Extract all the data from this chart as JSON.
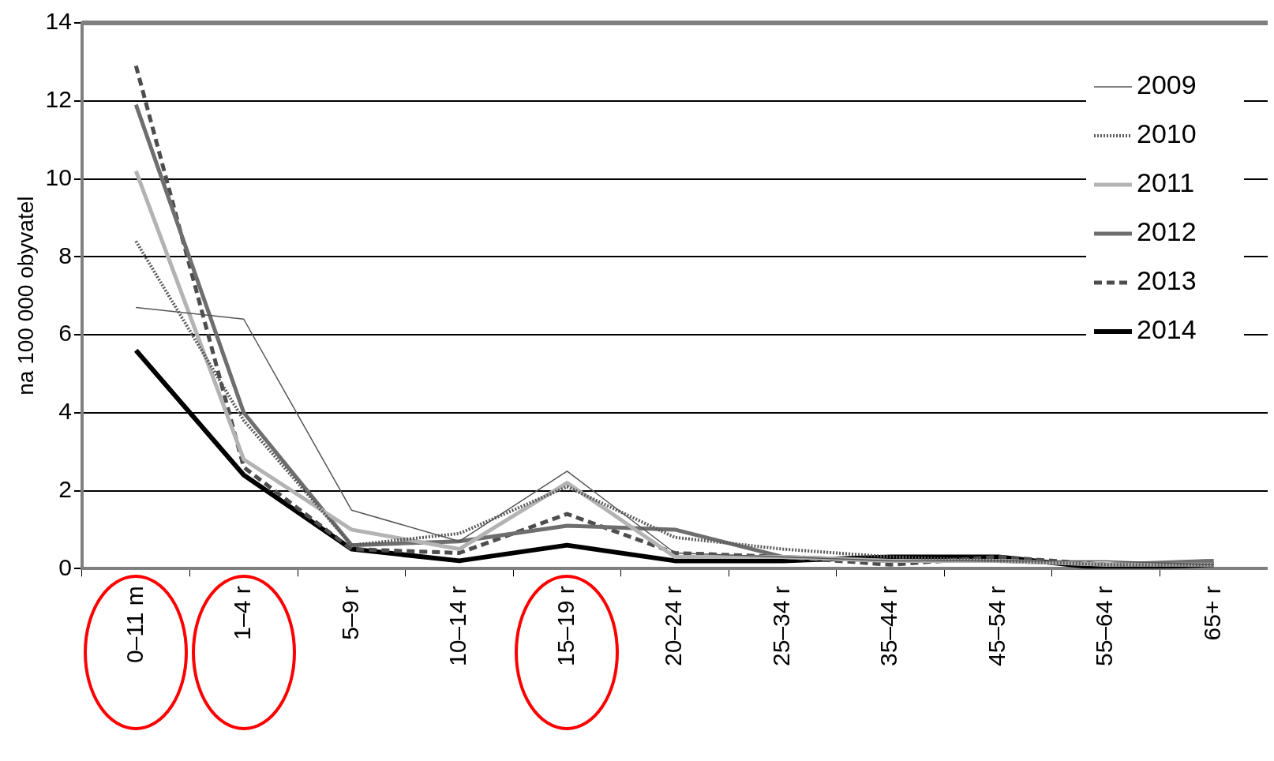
{
  "chart_data": {
    "type": "line",
    "ylabel": "na 100 000 obyvatel",
    "categories": [
      "0–11 m",
      "1–4 r",
      "5–9 r",
      "10–14 r",
      "15–19 r",
      "20–24 r",
      "25–34 r",
      "35–44 r",
      "45–54 r",
      "55–64 r",
      "65+ r"
    ],
    "series": [
      {
        "name": "2009",
        "color": "#555555",
        "line_style": "solid",
        "values": [
          6.7,
          6.4,
          1.5,
          0.7,
          2.5,
          0.4,
          0.3,
          0.2,
          0.2,
          0.2,
          0.1
        ]
      },
      {
        "name": "2010",
        "color": "#595959",
        "line_style": "dotted",
        "values": [
          8.4,
          3.8,
          0.6,
          0.9,
          2.1,
          0.8,
          0.5,
          0.3,
          0.2,
          0.1,
          0.1
        ]
      },
      {
        "name": "2011",
        "color": "#b3b3b3",
        "line_style": "solid",
        "values": [
          10.2,
          2.8,
          1.0,
          0.5,
          2.2,
          0.3,
          0.3,
          0.2,
          0.2,
          0.1,
          0.1
        ]
      },
      {
        "name": "2012",
        "color": "#6e6e6e",
        "line_style": "solid",
        "values": [
          11.9,
          4.0,
          0.6,
          0.7,
          1.1,
          1.0,
          0.3,
          0.2,
          0.2,
          0.1,
          0.2
        ]
      },
      {
        "name": "2013",
        "color": "#4d4d4d",
        "line_style": "dashed",
        "values": [
          12.9,
          2.6,
          0.5,
          0.4,
          1.4,
          0.4,
          0.3,
          0.1,
          0.3,
          0.1,
          0.1
        ]
      },
      {
        "name": "2014",
        "color": "#000000",
        "line_style": "solid",
        "values": [
          5.6,
          2.4,
          0.5,
          0.2,
          0.6,
          0.2,
          0.2,
          0.3,
          0.3,
          0.0,
          0.1
        ]
      }
    ],
    "ylim": [
      0,
      14
    ],
    "yticks": [
      0,
      2,
      4,
      6,
      8,
      10,
      12,
      14
    ],
    "grid": "y",
    "legend": "top right",
    "marker": "none"
  }
}
